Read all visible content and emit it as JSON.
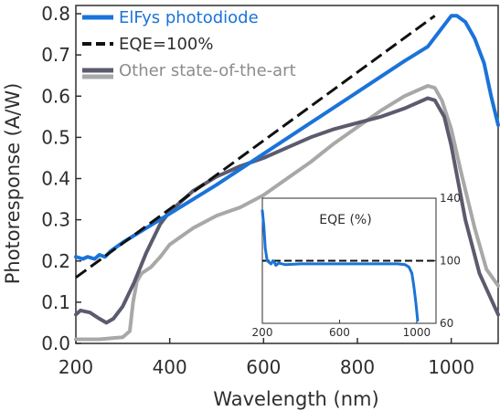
{
  "chart_data": [
    {
      "type": "line",
      "title": "",
      "xlabel": "Wavelength (nm)",
      "ylabel": "Photoresponse (A/W)",
      "xlim": [
        200,
        1100
      ],
      "ylim": [
        0,
        0.82
      ],
      "x_ticks": [
        "200",
        "400",
        "600",
        "800",
        "1000"
      ],
      "y_ticks": [
        "0.0",
        "0.1",
        "0.2",
        "0.3",
        "0.4",
        "0.5",
        "0.6",
        "0.7",
        "0.8"
      ],
      "legend": "top-left",
      "grid": false,
      "series": [
        {
          "name": "ElFys photodiode",
          "color": "#1a73d9",
          "style": "solid",
          "x": [
            200,
            215,
            225,
            240,
            250,
            262,
            275,
            300,
            350,
            400,
            500,
            600,
            700,
            800,
            900,
            950,
            1000,
            1012,
            1030,
            1050,
            1070,
            1085,
            1100
          ],
          "y": [
            0.21,
            0.205,
            0.21,
            0.205,
            0.215,
            0.21,
            0.225,
            0.245,
            0.28,
            0.315,
            0.385,
            0.46,
            0.535,
            0.61,
            0.685,
            0.72,
            0.795,
            0.795,
            0.78,
            0.74,
            0.68,
            0.6,
            0.53
          ]
        },
        {
          "name": "EQE=100%",
          "color": "#111111",
          "style": "dashed",
          "x": [
            200,
            965
          ],
          "y": [
            0.16,
            0.795
          ]
        },
        {
          "name": "Other state-of-the-art",
          "color": "#5b5b6e",
          "style": "solid",
          "x": [
            200,
            210,
            230,
            250,
            265,
            280,
            300,
            325,
            350,
            380,
            400,
            450,
            500,
            550,
            600,
            650,
            700,
            750,
            800,
            850,
            900,
            950,
            965,
            985,
            1000,
            1030,
            1060,
            1100
          ],
          "y": [
            0.07,
            0.08,
            0.075,
            0.06,
            0.05,
            0.06,
            0.09,
            0.15,
            0.22,
            0.29,
            0.32,
            0.37,
            0.405,
            0.43,
            0.45,
            0.475,
            0.5,
            0.52,
            0.535,
            0.55,
            0.57,
            0.595,
            0.59,
            0.55,
            0.48,
            0.3,
            0.17,
            0.07
          ]
        },
        {
          "name": "Other state-of-the-art",
          "color": "#a8a8a8",
          "style": "solid",
          "x": [
            200,
            250,
            300,
            315,
            322,
            330,
            340,
            360,
            380,
            400,
            450,
            500,
            550,
            600,
            650,
            700,
            750,
            800,
            850,
            900,
            930,
            950,
            965,
            980,
            1000,
            1020,
            1050,
            1075,
            1100
          ],
          "y": [
            0.01,
            0.01,
            0.015,
            0.03,
            0.1,
            0.15,
            0.17,
            0.185,
            0.21,
            0.24,
            0.28,
            0.31,
            0.33,
            0.36,
            0.4,
            0.44,
            0.485,
            0.525,
            0.565,
            0.6,
            0.615,
            0.625,
            0.62,
            0.59,
            0.52,
            0.42,
            0.28,
            0.18,
            0.14
          ]
        }
      ]
    },
    {
      "type": "line",
      "title": "EQE (%)",
      "xlim": [
        200,
        1100
      ],
      "ylim": [
        60,
        140
      ],
      "x_ticks": [
        "200",
        "600",
        "1000"
      ],
      "y_ticks": [
        "140",
        "100",
        "60"
      ],
      "series": [
        {
          "name": "",
          "color": "#1a73d9",
          "style": "solid",
          "x": [
            200,
            208,
            215,
            225,
            235,
            245,
            255,
            262,
            270,
            285,
            320,
            400,
            600,
            800,
            900,
            940,
            960,
            975,
            985,
            995,
            1005
          ],
          "y": [
            132,
            122,
            108,
            100,
            99,
            98,
            100,
            99,
            97,
            98.5,
            97.5,
            98,
            98,
            98,
            98,
            97.5,
            96,
            92,
            84,
            74,
            62
          ]
        },
        {
          "name": "",
          "color": "#111111",
          "style": "dashed",
          "x": [
            200,
            1100
          ],
          "y": [
            100,
            100
          ]
        }
      ]
    }
  ]
}
